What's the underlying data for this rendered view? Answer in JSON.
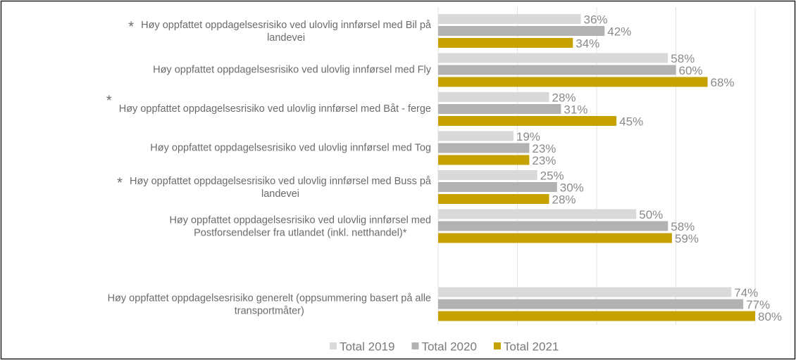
{
  "chart_data": {
    "type": "bar",
    "orientation": "horizontal",
    "categories": [
      [
        "Høy oppfattet oppdagelsesrisiko ved ulovlig innførsel med Bil på",
        "landevei"
      ],
      [
        "Høy oppfattet oppdagelsesrisiko ved ulovlig innførsel med Fly"
      ],
      [
        "Høy oppfattet oppdagelsesrisiko ved ulovlig innførsel med Båt - ferge"
      ],
      [
        "Høy oppfattet oppdagelsesrisiko ved ulovlig innførsel med Tog"
      ],
      [
        "Høy oppfattet oppdagelsesrisiko ved ulovlig innførsel med Buss på",
        "landevei"
      ],
      [
        "Høy oppfattet oppdagelsesrisiko ved ulovlig innførsel med",
        "Postforsendelser fra utlandet (inkl. netthandel)*"
      ],
      null,
      [
        "Høy oppfattet oppdagelsesrisiko generelt (oppsummering basert på alle",
        "transportmåter)"
      ]
    ],
    "markers": [
      "*",
      null,
      "*",
      null,
      "*",
      null,
      null,
      null
    ],
    "series": [
      {
        "name": "Total 2019",
        "color": "#d9d9d9",
        "values": [
          36,
          58,
          28,
          19,
          25,
          50,
          null,
          74
        ],
        "value_labels": [
          "36%",
          "58%",
          "28%",
          "19%",
          "25%",
          "50%",
          null,
          "74%"
        ]
      },
      {
        "name": "Total 2020",
        "color": "#b2b2b2",
        "values": [
          42,
          60,
          31,
          23,
          30,
          58,
          null,
          77
        ],
        "value_labels": [
          "42%",
          "60%",
          "31%",
          "23%",
          "30%",
          "58%",
          null,
          "77%"
        ]
      },
      {
        "name": "Total 2021",
        "color": "#c6a200",
        "values": [
          34,
          68,
          45,
          23,
          28,
          59,
          null,
          80
        ],
        "value_labels": [
          "34%",
          "68%",
          "45%",
          "23%",
          "28%",
          "59%",
          null,
          "80%"
        ]
      }
    ],
    "xlim": [
      0,
      80
    ],
    "xticks": [
      0,
      20,
      40,
      60,
      80
    ],
    "grid": true,
    "legend": "bottom"
  }
}
